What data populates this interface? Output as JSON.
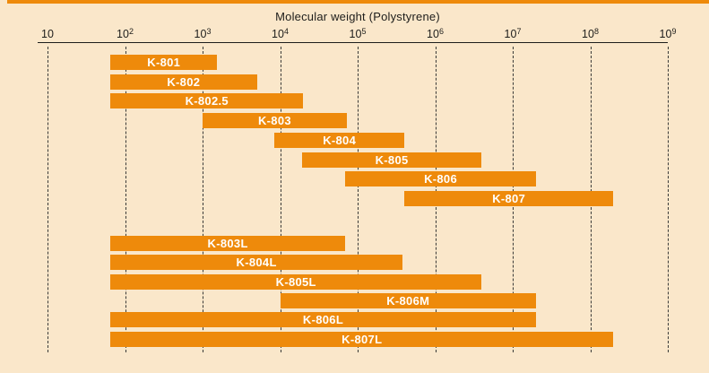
{
  "chart_data": {
    "type": "bar",
    "subtype": "horizontal-range-bars",
    "title": "Molecular weight (Polystyrene)",
    "xlabel": "Molecular weight (Polystyrene)",
    "ylabel": "",
    "x_axis": {
      "scale": "log10",
      "min": 10,
      "max": 1000000000,
      "min_exp": 1,
      "max_exp": 9,
      "grid": "dashed-vertical",
      "ticks": [
        {
          "base": "10",
          "sup": ""
        },
        {
          "base": "10",
          "sup": "2"
        },
        {
          "base": "10",
          "sup": "3"
        },
        {
          "base": "10",
          "sup": "4"
        },
        {
          "base": "10",
          "sup": "5"
        },
        {
          "base": "10",
          "sup": "6"
        },
        {
          "base": "10",
          "sup": "7"
        },
        {
          "base": "10",
          "sup": "8"
        },
        {
          "base": "10",
          "sup": "9"
        }
      ]
    },
    "colors": {
      "bar": "#ee8a0b",
      "background": "#fae7ca",
      "bar_label": "#ffffff",
      "axis": "#1d1d1b",
      "top_rule": "#ee8a0b"
    },
    "legend": null,
    "series": [
      {
        "name": "K-801",
        "group": "A",
        "mw_min": 65,
        "mw_max": 1500,
        "log_min": 1.81,
        "log_max": 3.19
      },
      {
        "name": "K-802",
        "group": "A",
        "mw_min": 65,
        "mw_max": 5000,
        "log_min": 1.81,
        "log_max": 3.7
      },
      {
        "name": "K-802.5",
        "group": "A",
        "mw_min": 65,
        "mw_max": 20000,
        "log_min": 1.81,
        "log_max": 4.3
      },
      {
        "name": "K-803",
        "group": "A",
        "mw_min": 1000,
        "mw_max": 70000,
        "log_min": 3.0,
        "log_max": 4.86
      },
      {
        "name": "K-804",
        "group": "A",
        "mw_min": 8500,
        "mw_max": 400000,
        "log_min": 3.93,
        "log_max": 5.6
      },
      {
        "name": "K-805",
        "group": "A",
        "mw_min": 20000,
        "mw_max": 4000000,
        "log_min": 4.28,
        "log_max": 6.6
      },
      {
        "name": "K-806",
        "group": "A",
        "mw_min": 70000,
        "mw_max": 20000000,
        "log_min": 4.84,
        "log_max": 7.3
      },
      {
        "name": "K-807",
        "group": "A",
        "mw_min": 400000,
        "mw_max": 200000000,
        "log_min": 5.6,
        "log_max": 8.3
      },
      {
        "name": "K-803L",
        "group": "B",
        "mw_min": 65,
        "mw_max": 70000,
        "log_min": 1.81,
        "log_max": 4.84
      },
      {
        "name": "K-804L",
        "group": "B",
        "mw_min": 65,
        "mw_max": 400000,
        "log_min": 1.81,
        "log_max": 5.58
      },
      {
        "name": "K-805L",
        "group": "B",
        "mw_min": 65,
        "mw_max": 4000000,
        "log_min": 1.81,
        "log_max": 6.6
      },
      {
        "name": "K-806M",
        "group": "B",
        "mw_min": 10000,
        "mw_max": 20000000,
        "log_min": 4.0,
        "log_max": 7.3
      },
      {
        "name": "K-806L",
        "group": "B",
        "mw_min": 65,
        "mw_max": 20000000,
        "log_min": 1.81,
        "log_max": 7.3
      },
      {
        "name": "K-807L",
        "group": "B",
        "mw_min": 65,
        "mw_max": 200000000,
        "log_min": 1.81,
        "log_max": 8.3
      }
    ]
  }
}
